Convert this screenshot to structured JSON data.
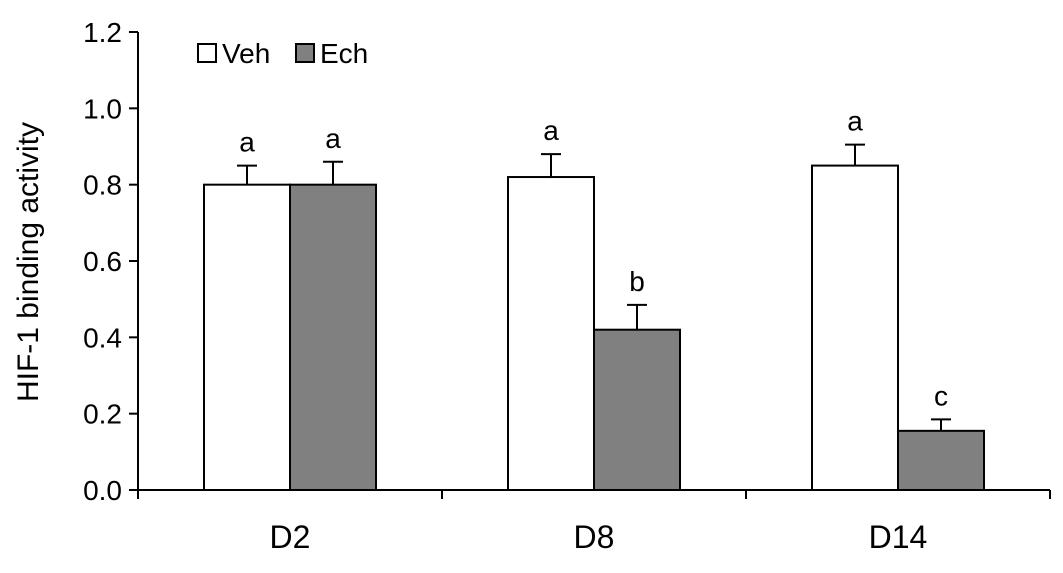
{
  "chart_data": {
    "type": "bar",
    "title": "",
    "xlabel": "",
    "ylabel": "HIF-1 binding activity",
    "ylim": [
      0,
      1.2
    ],
    "yticks": [
      "0.0",
      "0.2",
      "0.4",
      "0.6",
      "0.8",
      "1.0",
      "1.2"
    ],
    "categories": [
      "D2",
      "D8",
      "D14"
    ],
    "series": [
      {
        "name": "Veh",
        "color": "#ffffff",
        "values": [
          0.8,
          0.82,
          0.85
        ],
        "errors": [
          0.05,
          0.06,
          0.055
        ],
        "significance": [
          "a",
          "a",
          "a"
        ]
      },
      {
        "name": "Ech",
        "color": "#808080",
        "values": [
          0.8,
          0.42,
          0.155
        ],
        "errors": [
          0.06,
          0.065,
          0.03
        ],
        "significance": [
          "a",
          "b",
          "c"
        ]
      }
    ],
    "legend_position": "top-left",
    "grid": false
  }
}
